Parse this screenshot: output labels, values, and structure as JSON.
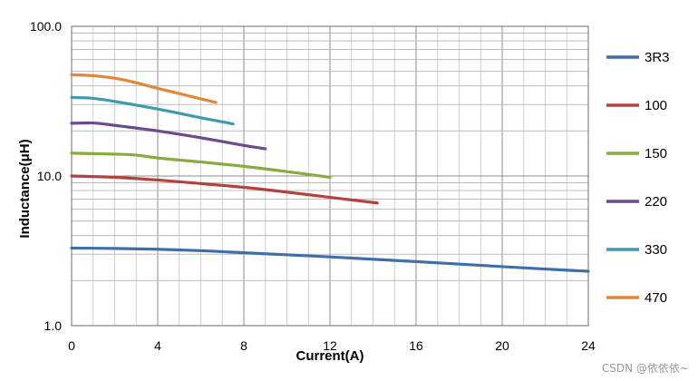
{
  "chart_data": {
    "type": "line",
    "title": "",
    "xlabel": "Current(A)",
    "ylabel": "Inductance(μH)",
    "xlim": [
      0,
      24
    ],
    "ylim": [
      1.0,
      100.0
    ],
    "yscale": "log",
    "x_ticks": [
      0,
      4,
      8,
      12,
      16,
      20,
      24
    ],
    "y_ticks": [
      1.0,
      10.0,
      100.0
    ],
    "y_tick_labels": [
      "1.0",
      "10.0",
      "100.0"
    ],
    "grid": true,
    "legend_position": "right",
    "series": [
      {
        "name": "3R3",
        "color": "#3f6fa8",
        "points": [
          [
            0,
            3.3
          ],
          [
            2,
            3.28
          ],
          [
            4,
            3.24
          ],
          [
            6,
            3.17
          ],
          [
            8,
            3.07
          ],
          [
            12,
            2.88
          ],
          [
            16,
            2.68
          ],
          [
            20,
            2.48
          ],
          [
            22,
            2.39
          ],
          [
            24,
            2.31
          ]
        ]
      },
      {
        "name": "100",
        "color": "#b5423e",
        "points": [
          [
            0,
            10.0
          ],
          [
            2,
            9.8
          ],
          [
            4,
            9.4
          ],
          [
            6,
            8.9
          ],
          [
            8,
            8.4
          ],
          [
            10,
            7.8
          ],
          [
            12,
            7.2
          ],
          [
            14.2,
            6.6
          ]
        ]
      },
      {
        "name": "150",
        "color": "#8aab3f",
        "points": [
          [
            0,
            14.2
          ],
          [
            2,
            14.0
          ],
          [
            3,
            13.8
          ],
          [
            4,
            13.2
          ],
          [
            6,
            12.4
          ],
          [
            8,
            11.6
          ],
          [
            10,
            10.7
          ],
          [
            12,
            9.8
          ]
        ]
      },
      {
        "name": "220",
        "color": "#6b4a8e",
        "points": [
          [
            0,
            22.5
          ],
          [
            1,
            22.6
          ],
          [
            2,
            21.8
          ],
          [
            4,
            20.0
          ],
          [
            6,
            18.0
          ],
          [
            8,
            16.0
          ],
          [
            9,
            15.2
          ]
        ]
      },
      {
        "name": "330",
        "color": "#3b9bb0",
        "points": [
          [
            0,
            33.5
          ],
          [
            1,
            33.0
          ],
          [
            2,
            31.5
          ],
          [
            4,
            28.0
          ],
          [
            6,
            24.5
          ],
          [
            7.5,
            22.3
          ]
        ]
      },
      {
        "name": "470",
        "color": "#e08a37",
        "points": [
          [
            0,
            47.5
          ],
          [
            1,
            46.8
          ],
          [
            2,
            45.0
          ],
          [
            3,
            42.0
          ],
          [
            4,
            38.5
          ],
          [
            5,
            35.5
          ],
          [
            6.7,
            31.0
          ]
        ]
      }
    ]
  },
  "watermark": "CSDN @依依依~"
}
